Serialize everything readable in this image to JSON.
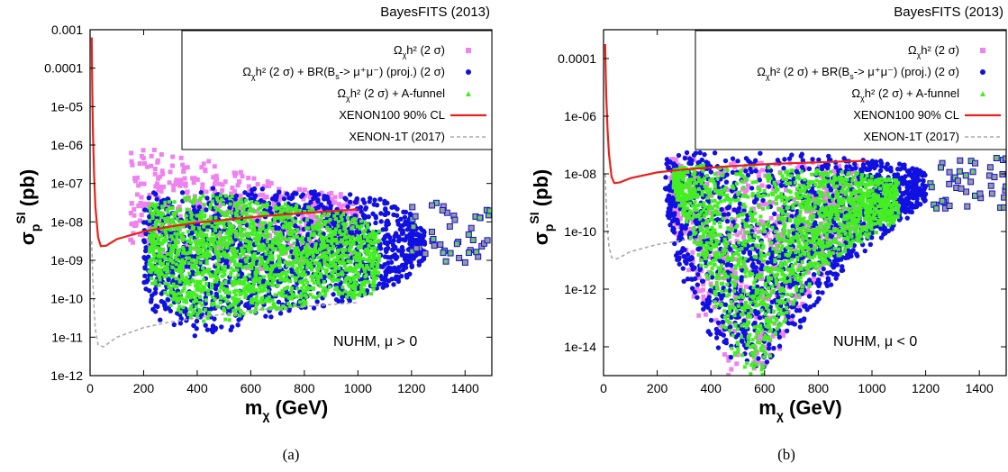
{
  "chart_data": [
    {
      "type": "scatter",
      "panel_label": "(a)",
      "corner_label": "BayesFITS (2013)",
      "annotation": "NUHM, μ > 0",
      "xlabel": "m",
      "xlabel_sub": "χ",
      "xlabel_unit": " (GeV)",
      "ylabel": "σ",
      "ylabel_sub": "p",
      "ylabel_sup": "SI",
      "ylabel_unit": " (pb)",
      "xlim": [
        0,
        1500
      ],
      "ylim_log10": [
        -12,
        -3
      ],
      "y_scale": "log",
      "x_ticks": [
        "0",
        "200",
        "400",
        "600",
        "800",
        "1000",
        "1200",
        "1400"
      ],
      "y_ticks": [
        "1e-12",
        "1e-11",
        "1e-10",
        "1e-09",
        "1e-08",
        "1e-07",
        "1e-06",
        "1e-05",
        "0.0001",
        "0.001"
      ],
      "legend_position": "top-right",
      "legend": [
        {
          "label": "Ω",
          "sub": "χ",
          "rest": "h² (2 σ)",
          "color": "#ee82ee",
          "marker": "square"
        },
        {
          "label": "Ω",
          "sub": "χ",
          "rest": "h² (2 σ) + BR(B",
          "sub2": "s",
          "rest2": "-> μ⁺μ⁻) (proj.) (2 σ)",
          "color": "#1010e0",
          "marker": "circle"
        },
        {
          "label": "Ω",
          "sub": "χ",
          "rest": "h² (2 σ) + A-funnel",
          "color": "#44ee22",
          "marker": "triangle"
        },
        {
          "label": "XENON100 90% CL",
          "color": "#e8221a",
          "marker": "line"
        },
        {
          "label": "XENON-1T (2017)",
          "color": "#aaaaaa",
          "marker": "dashed"
        }
      ],
      "region_envelopes": [
        {
          "name": "omega_2sigma",
          "color": "#ee82ee",
          "x": [
            150,
            300,
            450,
            600,
            700,
            850,
            1000
          ],
          "y_low_log10": [
            -8.5,
            -9.2,
            -9.3,
            -9.3,
            -9.2,
            -9.0,
            -8.9
          ],
          "y_high_log10": [
            -6.0,
            -6.2,
            -6.4,
            -6.8,
            -7.0,
            -7.2,
            -7.3
          ]
        },
        {
          "name": "omega_bs",
          "color": "#1010e0",
          "x": [
            200,
            250,
            300,
            400,
            500,
            600,
            700,
            800,
            900,
            1000,
            1100,
            1200,
            1250
          ],
          "y_low_log10": [
            -9.8,
            -10.5,
            -10.8,
            -11.0,
            -10.9,
            -10.7,
            -10.5,
            -10.3,
            -10.2,
            -10.0,
            -9.8,
            -9.4,
            -9.0
          ],
          "y_high_log10": [
            -7.3,
            -7.2,
            -7.2,
            -7.0,
            -7.0,
            -7.1,
            -7.1,
            -7.2,
            -7.2,
            -7.3,
            -7.4,
            -7.8,
            -8.2
          ]
        },
        {
          "name": "a_funnel",
          "color": "#44ee22",
          "x": [
            220,
            300,
            400,
            500,
            600,
            700,
            800,
            900,
            1000,
            1080
          ],
          "y_low_log10": [
            -9.5,
            -10.3,
            -10.6,
            -10.6,
            -10.4,
            -10.3,
            -10.2,
            -10.0,
            -10.0,
            -9.8
          ],
          "y_high_log10": [
            -7.5,
            -7.4,
            -7.3,
            -7.3,
            -7.4,
            -7.5,
            -7.6,
            -7.7,
            -7.9,
            -8.2
          ]
        }
      ],
      "series": [
        {
          "name": "XENON100 90% CL",
          "color": "#e8221a",
          "style": "solid",
          "x": [
            6,
            8,
            10,
            15,
            20,
            30,
            40,
            60,
            100,
            200,
            300,
            400,
            500,
            600,
            700,
            800,
            900,
            1000
          ],
          "y_log10": [
            -3.2,
            -4.5,
            -5.5,
            -6.8,
            -7.6,
            -8.4,
            -8.63,
            -8.62,
            -8.45,
            -8.25,
            -8.12,
            -8.02,
            -7.95,
            -7.88,
            -7.82,
            -7.77,
            -7.72,
            -7.67
          ]
        },
        {
          "name": "XENON-1T (2017)",
          "color": "#aaaaaa",
          "style": "dashed",
          "x": [
            6,
            10,
            15,
            20,
            30,
            50,
            100,
            200,
            300,
            400,
            500,
            600,
            700,
            800,
            900,
            1000
          ],
          "y_log10": [
            -8.5,
            -9.5,
            -10.3,
            -10.8,
            -11.2,
            -11.25,
            -11.0,
            -10.75,
            -10.6,
            -10.5,
            -10.4,
            -10.3,
            -10.25,
            -10.2,
            -10.15,
            -10.1
          ]
        }
      ]
    },
    {
      "type": "scatter",
      "panel_label": "(b)",
      "corner_label": "BayesFITS (2013)",
      "annotation": "NUHM, μ < 0",
      "xlabel": "m",
      "xlabel_sub": "χ",
      "xlabel_unit": " (GeV)",
      "ylabel": "σ",
      "ylabel_sub": "p",
      "ylabel_sup": "SI",
      "ylabel_unit": " (pb)",
      "xlim": [
        0,
        1500
      ],
      "ylim_log10": [
        -15,
        -3
      ],
      "y_scale": "log",
      "x_ticks": [
        "0",
        "200",
        "400",
        "600",
        "800",
        "1000",
        "1200",
        "1400"
      ],
      "y_ticks": [
        "1e-14",
        "1e-12",
        "1e-10",
        "1e-08",
        "1e-06",
        "0.0001"
      ],
      "legend_position": "top-right",
      "legend": [
        {
          "label": "Ω",
          "sub": "χ",
          "rest": "h² (2 σ)",
          "color": "#ee82ee",
          "marker": "square"
        },
        {
          "label": "Ω",
          "sub": "χ",
          "rest": "h² (2 σ) + BR(B",
          "sub2": "s",
          "rest2": "-> μ⁺μ⁻) (proj.) (2 σ)",
          "color": "#1010e0",
          "marker": "circle"
        },
        {
          "label": "Ω",
          "sub": "χ",
          "rest": "h² (2 σ) + A-funnel",
          "color": "#44ee22",
          "marker": "triangle"
        },
        {
          "label": "XENON100 90% CL",
          "color": "#e8221a",
          "marker": "line"
        },
        {
          "label": "XENON-1T (2017)",
          "color": "#aaaaaa",
          "marker": "dashed"
        }
      ],
      "region_envelopes": [
        {
          "name": "omega_2sigma",
          "color": "#ee82ee",
          "x": [
            250,
            350,
            450,
            550,
            650,
            750,
            850,
            950
          ],
          "y_low_log10": [
            -9.5,
            -13.0,
            -15.0,
            -15.0,
            -14.5,
            -12.5,
            -11.0,
            -10.0
          ],
          "y_high_log10": [
            -7.4,
            -7.4,
            -7.5,
            -7.5,
            -7.5,
            -7.6,
            -7.6,
            -7.7
          ]
        },
        {
          "name": "omega_bs",
          "color": "#1010e0",
          "x": [
            230,
            270,
            330,
            400,
            500,
            600,
            700,
            800,
            900,
            1000,
            1100,
            1200
          ],
          "y_low_log10": [
            -9.0,
            -11.0,
            -12.5,
            -14.0,
            -14.8,
            -14.8,
            -13.8,
            -12.5,
            -11.3,
            -10.5,
            -9.8,
            -9.0
          ],
          "y_high_log10": [
            -7.5,
            -7.3,
            -7.2,
            -7.2,
            -7.2,
            -7.2,
            -7.2,
            -7.3,
            -7.4,
            -7.5,
            -7.6,
            -7.9
          ]
        },
        {
          "name": "a_funnel",
          "color": "#44ee22",
          "x": [
            260,
            330,
            400,
            480,
            540,
            600,
            660,
            720,
            800,
            900,
            1000,
            1100
          ],
          "y_low_log10": [
            -8.5,
            -10.5,
            -12.0,
            -14.5,
            -15.0,
            -15.0,
            -13.5,
            -12.5,
            -11.5,
            -10.7,
            -10.2,
            -9.6
          ],
          "y_high_log10": [
            -7.8,
            -7.7,
            -7.7,
            -7.7,
            -7.7,
            -7.7,
            -7.7,
            -7.8,
            -7.8,
            -7.9,
            -8.0,
            -8.2
          ]
        }
      ],
      "series": [
        {
          "name": "XENON100 90% CL",
          "color": "#e8221a",
          "style": "solid",
          "x": [
            6,
            8,
            10,
            15,
            20,
            30,
            40,
            60,
            100,
            200,
            300,
            400,
            500,
            600,
            700,
            800,
            900,
            980
          ],
          "y_log10": [
            -3.5,
            -4.5,
            -5.3,
            -6.5,
            -7.3,
            -8.1,
            -8.32,
            -8.3,
            -8.15,
            -7.95,
            -7.85,
            -7.78,
            -7.72,
            -7.67,
            -7.63,
            -7.6,
            -7.57,
            -7.55
          ]
        },
        {
          "name": "XENON-1T (2017)",
          "color": "#aaaaaa",
          "style": "dashed",
          "x": [
            6,
            10,
            15,
            20,
            30,
            50,
            100,
            200,
            300,
            400,
            500,
            600,
            700,
            800,
            900,
            1000
          ],
          "y_log10": [
            -8.0,
            -9.0,
            -10.0,
            -10.5,
            -10.9,
            -10.95,
            -10.7,
            -10.45,
            -10.3,
            -10.2,
            -10.1,
            -10.0,
            -9.95,
            -9.9,
            -9.85,
            -9.8
          ]
        }
      ]
    }
  ]
}
